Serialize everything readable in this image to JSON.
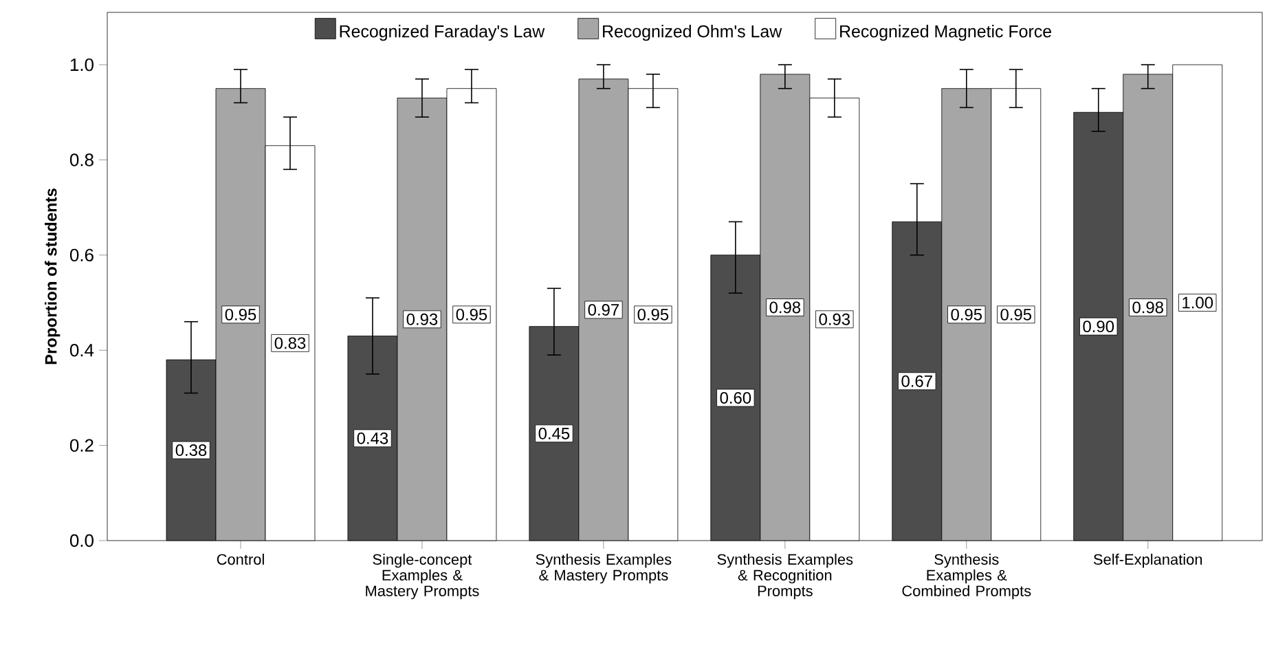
{
  "chart_data": {
    "type": "bar",
    "ylabel": "Proportion of students",
    "categories": [
      "Control",
      "Single-concept Examples & Mastery Prompts",
      "Synthesis Examples & Mastery Prompts",
      "Synthesis Examples & Recognition Prompts",
      "Synthesis Examples & Combined Prompts",
      "Self-Explanation"
    ],
    "series": [
      {
        "name": "Recognized Faraday's Law",
        "color": "#4d4d4d",
        "values": [
          0.38,
          0.43,
          0.45,
          0.6,
          0.67,
          0.9
        ],
        "value_labels": [
          "0.38",
          "0.43",
          "0.45",
          "0.60",
          "0.67",
          "0.90"
        ],
        "errors": [
          [
            0.31,
            0.46
          ],
          [
            0.35,
            0.51
          ],
          [
            0.39,
            0.53
          ],
          [
            0.52,
            0.67
          ],
          [
            0.6,
            0.75
          ],
          [
            0.86,
            0.95
          ]
        ]
      },
      {
        "name": "Recognized Ohm's Law",
        "color": "#a6a6a6",
        "values": [
          0.95,
          0.93,
          0.97,
          0.98,
          0.95,
          0.98
        ],
        "value_labels": [
          "0.95",
          "0.93",
          "0.97",
          "0.98",
          "0.95",
          "0.98"
        ],
        "errors": [
          [
            0.92,
            0.99
          ],
          [
            0.89,
            0.97
          ],
          [
            0.95,
            1.0
          ],
          [
            0.95,
            1.0
          ],
          [
            0.91,
            0.99
          ],
          [
            0.95,
            1.0
          ]
        ]
      },
      {
        "name": "Recognized Magnetic Force",
        "color": "#ffffff",
        "values": [
          0.83,
          0.95,
          0.95,
          0.93,
          0.95,
          1.0
        ],
        "value_labels": [
          "0.83",
          "0.95",
          "0.95",
          "0.93",
          "0.95",
          "1.00"
        ],
        "errors": [
          [
            0.78,
            0.89
          ],
          [
            0.92,
            0.99
          ],
          [
            0.91,
            0.98
          ],
          [
            0.89,
            0.97
          ],
          [
            0.91,
            0.99
          ],
          null
        ]
      }
    ],
    "ylim": [
      0,
      1.11
    ],
    "yticks": [
      {
        "value": 0,
        "label": "0.0"
      },
      0.2,
      0.4,
      0.6,
      0.8,
      {
        "value": 1,
        "label": "1.0"
      }
    ],
    "grid": false,
    "legend": "top"
  }
}
